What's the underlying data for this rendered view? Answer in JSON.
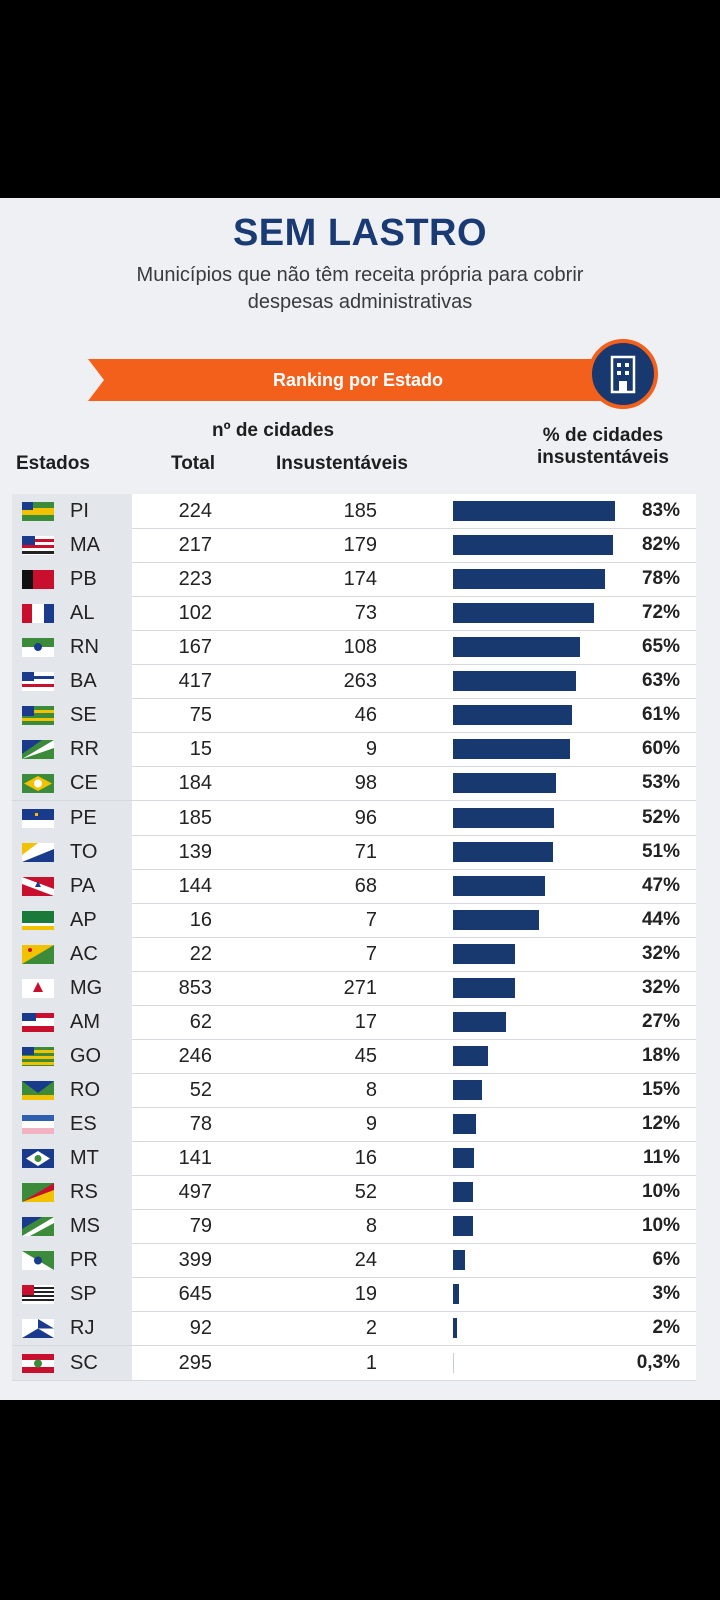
{
  "header": {
    "title": "SEM LASTRO",
    "subtitle_line1": "Municípios que não têm receita própria para cobrir",
    "subtitle_line2": "despesas administrativas",
    "banner": "Ranking por Estado",
    "badge_icon": "building-icon"
  },
  "columns": {
    "group": "nº de cidades",
    "estados": "Estados",
    "total": "Total",
    "insustentaveis": "Insustentáveis",
    "pct_line1": "% de cidades",
    "pct_line2": "insustentáveis"
  },
  "colors": {
    "navy": "#18396f",
    "orange": "#f3601c"
  },
  "chart_data": {
    "type": "bar",
    "title": "Ranking por Estado",
    "ylabel": "% de cidades insustentáveis",
    "categories": [
      "PI",
      "MA",
      "PB",
      "AL",
      "RN",
      "BA",
      "SE",
      "RR",
      "CE",
      "PE",
      "TO",
      "PA",
      "AP",
      "AC",
      "MG",
      "AM",
      "GO",
      "RO",
      "ES",
      "MT",
      "RS",
      "MS",
      "PR",
      "SP",
      "RJ",
      "SC"
    ],
    "values": [
      83,
      82,
      78,
      72,
      65,
      63,
      61,
      60,
      53,
      52,
      51,
      47,
      44,
      32,
      32,
      27,
      18,
      15,
      12,
      11,
      10,
      10,
      6,
      3,
      2,
      0.3
    ],
    "ylim": [
      0,
      83
    ],
    "rows": [
      {
        "state": "PI",
        "total": "224",
        "insust": "185",
        "pct": 83,
        "label": "83%"
      },
      {
        "state": "MA",
        "total": "217",
        "insust": "179",
        "pct": 82,
        "label": "82%"
      },
      {
        "state": "PB",
        "total": "223",
        "insust": "174",
        "pct": 78,
        "label": "78%"
      },
      {
        "state": "AL",
        "total": "102",
        "insust": "73",
        "pct": 72,
        "label": "72%"
      },
      {
        "state": "RN",
        "total": "167",
        "insust": "108",
        "pct": 65,
        "label": "65%"
      },
      {
        "state": "BA",
        "total": "417",
        "insust": "263",
        "pct": 63,
        "label": "63%"
      },
      {
        "state": "SE",
        "total": "75",
        "insust": "46",
        "pct": 61,
        "label": "61%"
      },
      {
        "state": "RR",
        "total": "15",
        "insust": "9",
        "pct": 60,
        "label": "60%"
      },
      {
        "state": "CE",
        "total": "184",
        "insust": "98",
        "pct": 53,
        "label": "53%"
      },
      {
        "state": "PE",
        "total": "185",
        "insust": "96",
        "pct": 52,
        "label": "52%"
      },
      {
        "state": "TO",
        "total": "139",
        "insust": "71",
        "pct": 51,
        "label": "51%"
      },
      {
        "state": "PA",
        "total": "144",
        "insust": "68",
        "pct": 47,
        "label": "47%"
      },
      {
        "state": "AP",
        "total": "16",
        "insust": "7",
        "pct": 44,
        "label": "44%"
      },
      {
        "state": "AC",
        "total": "22",
        "insust": "7",
        "pct": 32,
        "label": "32%"
      },
      {
        "state": "MG",
        "total": "853",
        "insust": "271",
        "pct": 32,
        "label": "32%"
      },
      {
        "state": "AM",
        "total": "62",
        "insust": "17",
        "pct": 27,
        "label": "27%"
      },
      {
        "state": "GO",
        "total": "246",
        "insust": "45",
        "pct": 18,
        "label": "18%"
      },
      {
        "state": "RO",
        "total": "52",
        "insust": "8",
        "pct": 15,
        "label": "15%"
      },
      {
        "state": "ES",
        "total": "78",
        "insust": "9",
        "pct": 12,
        "label": "12%"
      },
      {
        "state": "MT",
        "total": "141",
        "insust": "16",
        "pct": 11,
        "label": "11%"
      },
      {
        "state": "RS",
        "total": "497",
        "insust": "52",
        "pct": 10,
        "label": "10%"
      },
      {
        "state": "MS",
        "total": "79",
        "insust": "8",
        "pct": 10,
        "label": "10%"
      },
      {
        "state": "PR",
        "total": "399",
        "insust": "24",
        "pct": 6,
        "label": "6%"
      },
      {
        "state": "SP",
        "total": "645",
        "insust": "19",
        "pct": 3,
        "label": "3%"
      },
      {
        "state": "RJ",
        "total": "92",
        "insust": "2",
        "pct": 2,
        "label": "2%"
      },
      {
        "state": "SC",
        "total": "295",
        "insust": "1",
        "pct": 0.3,
        "label": "0,3%"
      }
    ]
  }
}
